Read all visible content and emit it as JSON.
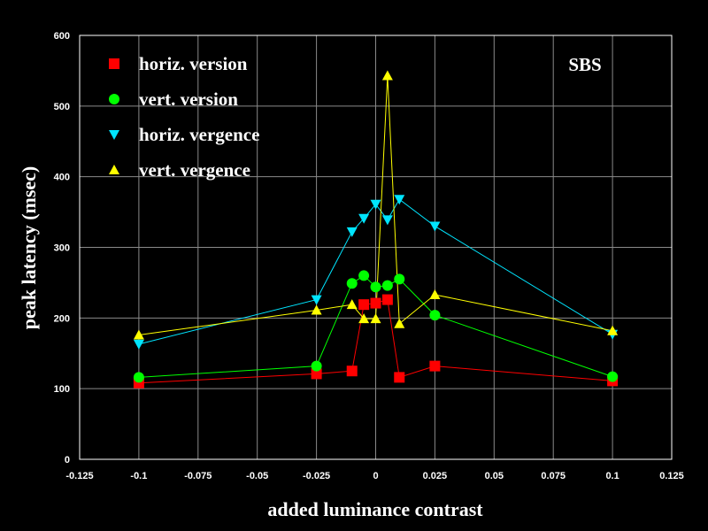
{
  "chart_data": {
    "type": "line",
    "xlabel": "added luminance contrast",
    "ylabel": "peak latency (msec)",
    "annotation": "SBS",
    "xlim": [
      -0.125,
      0.125
    ],
    "ylim": [
      0,
      600
    ],
    "xticks": [
      -0.125,
      -0.1,
      -0.075,
      -0.05,
      -0.025,
      0,
      0.025,
      0.05,
      0.075,
      0.1,
      0.125
    ],
    "xtick_labels": [
      "-0.125",
      "-0.1",
      "-0.075",
      "-0.05",
      "-0.025",
      "0",
      "0.025",
      "0.05",
      "0.075",
      "0.1",
      "0.125"
    ],
    "yticks": [
      0,
      100,
      200,
      300,
      400,
      500,
      600
    ],
    "ytick_labels": [
      "0",
      "100",
      "200",
      "300",
      "400",
      "500",
      "600"
    ],
    "grid": true,
    "legend_position": "top-left",
    "series": [
      {
        "name": "horiz. version",
        "color": "#ff0000",
        "marker": "square",
        "x": [
          -0.1,
          -0.025,
          -0.01,
          -0.005,
          0,
          0.005,
          0.01,
          0.025,
          0.1
        ],
        "y": [
          108,
          121,
          125,
          219,
          221,
          226,
          116,
          132,
          111
        ]
      },
      {
        "name": "vert. version",
        "color": "#00ff00",
        "marker": "circle",
        "x": [
          -0.1,
          -0.025,
          -0.01,
          -0.005,
          0,
          0.005,
          0.01,
          0.025,
          0.1
        ],
        "y": [
          116,
          132,
          249,
          260,
          244,
          246,
          255,
          204,
          117
        ]
      },
      {
        "name": "horiz. vergence",
        "color": "#00e5ff",
        "marker": "triangle-down",
        "x": [
          -0.1,
          -0.025,
          -0.01,
          -0.005,
          0,
          0.005,
          0.01,
          0.025,
          0.1
        ],
        "y": [
          163,
          226,
          322,
          341,
          361,
          339,
          368,
          330,
          177
        ]
      },
      {
        "name": "vert. vergence",
        "color": "#ffff00",
        "marker": "triangle-up",
        "x": [
          -0.1,
          -0.025,
          -0.01,
          -0.005,
          0,
          0.005,
          0.01,
          0.025,
          0.1
        ],
        "y": [
          176,
          211,
          219,
          199,
          199,
          543,
          192,
          233,
          182
        ]
      }
    ]
  }
}
